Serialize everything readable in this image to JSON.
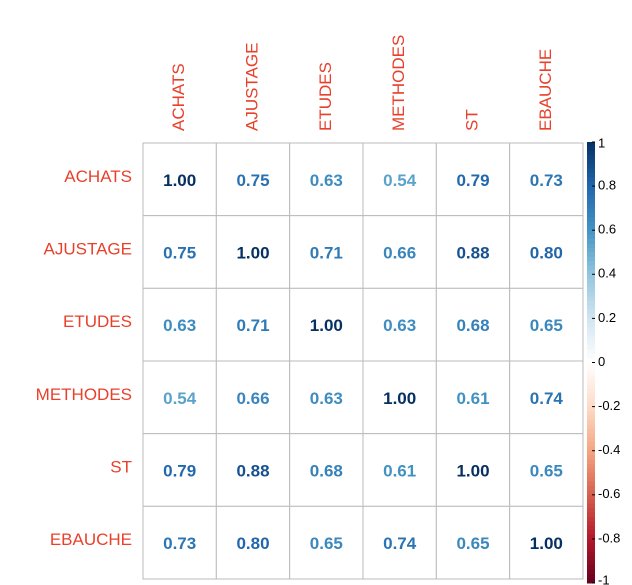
{
  "chart_data": {
    "type": "corrplot",
    "categories": [
      "ACHATS",
      "AJUSTAGE",
      "ETUDES",
      "METHODES",
      "ST",
      "EBAUCHE"
    ],
    "values": [
      [
        1,
        0.75,
        0.63,
        0.54,
        0.79,
        0.73
      ],
      [
        0.75,
        1,
        0.71,
        0.66,
        0.88,
        0.8
      ],
      [
        0.63,
        0.71,
        1,
        0.63,
        0.68,
        0.65
      ],
      [
        0.54,
        0.66,
        0.63,
        1,
        0.61,
        0.74
      ],
      [
        0.79,
        0.88,
        0.68,
        0.61,
        1,
        0.65
      ],
      [
        0.73,
        0.8,
        0.65,
        0.74,
        0.65,
        1
      ]
    ],
    "value_labels": [
      [
        "1.00",
        "0.75",
        "0.63",
        "0.54",
        "0.79",
        "0.73"
      ],
      [
        "0.75",
        "1.00",
        "0.71",
        "0.66",
        "0.88",
        "0.80"
      ],
      [
        "0.63",
        "0.71",
        "1.00",
        "0.63",
        "0.68",
        "0.65"
      ],
      [
        "0.54",
        "0.66",
        "0.63",
        "1.00",
        "0.61",
        "0.74"
      ],
      [
        "0.79",
        "0.88",
        "0.68",
        "0.61",
        "1.00",
        "0.65"
      ],
      [
        "0.73",
        "0.80",
        "0.65",
        "0.74",
        "0.65",
        "1.00"
      ]
    ],
    "clim": [
      -1,
      1
    ],
    "cticks": [
      1,
      0.8,
      0.6,
      0.4,
      0.2,
      0,
      -0.2,
      -0.4,
      -0.6,
      -0.8,
      -1
    ],
    "colormap": [
      "#67001f",
      "#b2182b",
      "#d6604d",
      "#f4a582",
      "#fddbc7",
      "#ffffff",
      "#d1e5f0",
      "#92c5de",
      "#4393c3",
      "#2166ac",
      "#053061"
    ],
    "label_color": "#e8402b"
  }
}
